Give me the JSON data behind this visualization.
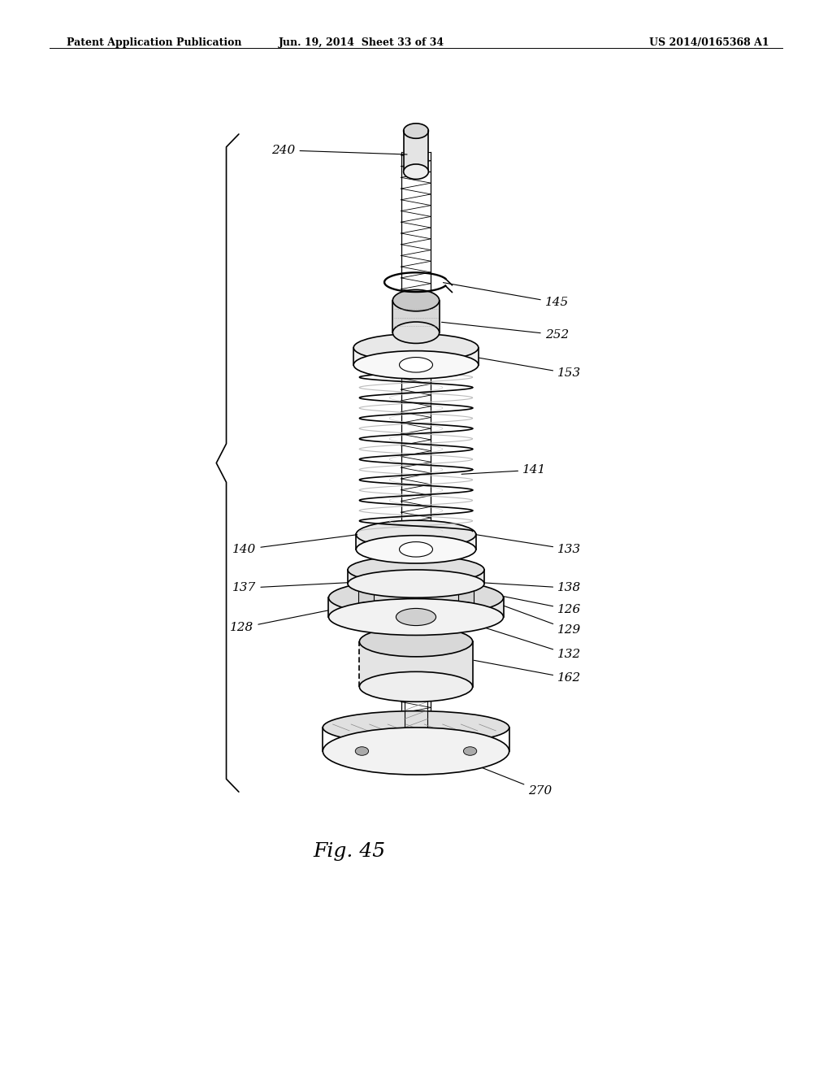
{
  "bg_color": "#ffffff",
  "line_color": "#000000",
  "header_left": "Patent Application Publication",
  "header_mid": "Jun. 19, 2014  Sheet 33 of 34",
  "header_right": "US 2014/0165368 A1",
  "fig_title": "Fig. 45"
}
